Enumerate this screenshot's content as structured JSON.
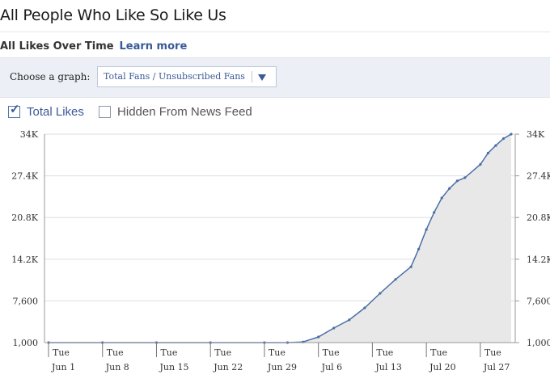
{
  "page": {
    "title": "All People Who Like So Like Us"
  },
  "section": {
    "title": "All Likes Over Time",
    "learn_more": "Learn more"
  },
  "graph_selector": {
    "label": "Choose a graph:",
    "selected": "Total Fans / Unsubscribed Fans"
  },
  "series_toggles": [
    {
      "label": "Total Likes",
      "checked": true
    },
    {
      "label": "Hidden From News Feed",
      "checked": false
    }
  ],
  "colors": {
    "accent": "#3b5998",
    "line": "#4a6ea8",
    "fill": "#e8e8e8",
    "grid": "#d9dee6"
  },
  "chart_data": {
    "type": "area",
    "title": "",
    "xlabel": "",
    "ylabel": "",
    "ylim": [
      1000,
      34000
    ],
    "y_ticks": [
      "34K",
      "27.4K",
      "20.8K",
      "14.2K",
      "7,600",
      "1,000"
    ],
    "y_tick_values": [
      34000,
      27400,
      20800,
      14200,
      7600,
      1000
    ],
    "x_ticks": [
      {
        "day": "Tue",
        "date": "Jun 1"
      },
      {
        "day": "Tue",
        "date": "Jun 8"
      },
      {
        "day": "Tue",
        "date": "Jun 15"
      },
      {
        "day": "Tue",
        "date": "Jun 22"
      },
      {
        "day": "Tue",
        "date": "Jun 29"
      },
      {
        "day": "Tue",
        "date": "Jul 6"
      },
      {
        "day": "Tue",
        "date": "Jul 13"
      },
      {
        "day": "Tue",
        "date": "Jul 20"
      },
      {
        "day": "Tue",
        "date": "Jul 27"
      }
    ],
    "dates": [
      "Jun 1",
      "Jun 8",
      "Jun 15",
      "Jun 22",
      "Jun 29",
      "Jul 2",
      "Jul 4",
      "Jul 6",
      "Jul 8",
      "Jul 10",
      "Jul 12",
      "Jul 14",
      "Jul 16",
      "Jul 18",
      "Jul 19",
      "Jul 20",
      "Jul 21",
      "Jul 22",
      "Jul 23",
      "Jul 24",
      "Jul 25",
      "Jul 27",
      "Jul 28",
      "Jul 29",
      "Jul 30",
      "Jul 31"
    ],
    "values": [
      1000,
      1000,
      1000,
      1000,
      1000,
      1000,
      1100,
      1900,
      3300,
      4600,
      6500,
      8800,
      11000,
      13000,
      15800,
      18900,
      21600,
      23900,
      25400,
      26600,
      27100,
      29200,
      31000,
      32200,
      33300,
      34000
    ],
    "grid": true,
    "legend": "none"
  }
}
